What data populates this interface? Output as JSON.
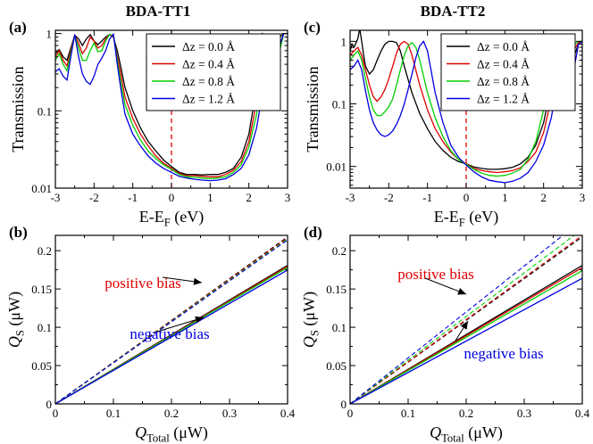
{
  "figure": {
    "titles": [
      "BDA-TT1",
      "BDA-TT2"
    ]
  },
  "styles": {
    "colors": [
      "#000000",
      "#e00000",
      "#00d000",
      "#0000e0"
    ],
    "fermi_color": "#e00000"
  },
  "chart_data": [
    {
      "id": "a",
      "panel_label": "(a)",
      "title": "BDA-TT1",
      "type": "line",
      "yscale": "log",
      "xlim": [
        -3,
        3
      ],
      "ylim": [
        0.01,
        1.1
      ],
      "xticks": [
        -3,
        -2,
        -1,
        0,
        1,
        2,
        3
      ],
      "xticklabels": [
        "-3",
        "-2",
        "-1",
        "0",
        "1",
        "2",
        "3"
      ],
      "yticks": [
        0.01,
        0.1,
        1
      ],
      "yticklabels": [
        "0.01",
        "0.1",
        "1"
      ],
      "ylabel": "Transmission",
      "xlabel_main": "E-E",
      "xlabel_sub": "F",
      "xlabel_tail": " (eV)",
      "vline_x": 0,
      "legend_position": "top-right",
      "series": [
        {
          "name": "Δz = 0.0 Å",
          "x": [
            -3,
            -2.9,
            -2.8,
            -2.7,
            -2.6,
            -2.5,
            -2.4,
            -2.3,
            -2.2,
            -2.1,
            -2,
            -1.9,
            -1.8,
            -1.7,
            -1.6,
            -1.5,
            -1.4,
            -1.3,
            -1.2,
            -1.0,
            -0.8,
            -0.6,
            -0.4,
            -0.2,
            0,
            0.2,
            0.4,
            0.6,
            0.8,
            1.0,
            1.2,
            1.4,
            1.6,
            1.8,
            2.0,
            2.2,
            2.3,
            2.35,
            2.4,
            2.45,
            2.5,
            2.55,
            2.6,
            2.7,
            2.8,
            2.9,
            3.0
          ],
          "y": [
            0.55,
            0.62,
            0.5,
            0.45,
            0.65,
            0.95,
            0.85,
            0.7,
            0.85,
            0.97,
            0.8,
            0.72,
            0.8,
            0.9,
            0.97,
            0.9,
            0.6,
            0.35,
            0.2,
            0.1,
            0.06,
            0.04,
            0.03,
            0.023,
            0.019,
            0.016,
            0.015,
            0.015,
            0.0148,
            0.015,
            0.015,
            0.016,
            0.018,
            0.025,
            0.05,
            0.2,
            0.7,
            1.0,
            0.95,
            0.9,
            0.9,
            0.98,
            0.95,
            0.7,
            0.9,
            1.0,
            1.0
          ]
        },
        {
          "name": "Δz = 0.4 Å",
          "x": [
            -3,
            -2.9,
            -2.8,
            -2.7,
            -2.6,
            -2.5,
            -2.4,
            -2.3,
            -2.2,
            -2.1,
            -2,
            -1.9,
            -1.8,
            -1.7,
            -1.6,
            -1.5,
            -1.4,
            -1.3,
            -1.2,
            -1.0,
            -0.8,
            -0.6,
            -0.4,
            -0.2,
            0,
            0.2,
            0.4,
            0.6,
            0.8,
            1.0,
            1.2,
            1.4,
            1.6,
            1.8,
            2.0,
            2.2,
            2.3,
            2.4,
            2.45,
            2.5,
            2.55,
            2.6,
            2.7,
            2.8,
            2.9,
            3.0
          ],
          "y": [
            0.5,
            0.6,
            0.45,
            0.38,
            0.6,
            0.95,
            0.75,
            0.55,
            0.65,
            0.9,
            0.8,
            0.65,
            0.7,
            0.85,
            0.97,
            0.9,
            0.5,
            0.28,
            0.15,
            0.08,
            0.05,
            0.035,
            0.026,
            0.021,
            0.018,
            0.0155,
            0.0145,
            0.0145,
            0.0142,
            0.014,
            0.014,
            0.015,
            0.017,
            0.022,
            0.04,
            0.13,
            0.4,
            0.95,
            0.9,
            0.85,
            0.7,
            0.5,
            0.35,
            0.7,
            1.0,
            1.0
          ]
        },
        {
          "name": "Δz = 0.8 Å",
          "x": [
            -3,
            -2.9,
            -2.8,
            -2.7,
            -2.6,
            -2.5,
            -2.4,
            -2.3,
            -2.2,
            -2.1,
            -2,
            -1.9,
            -1.8,
            -1.7,
            -1.6,
            -1.5,
            -1.4,
            -1.3,
            -1.2,
            -1.0,
            -0.8,
            -0.6,
            -0.4,
            -0.2,
            0,
            0.2,
            0.4,
            0.6,
            0.8,
            1.0,
            1.2,
            1.4,
            1.6,
            1.8,
            2.0,
            2.2,
            2.3,
            2.4,
            2.5,
            2.55,
            2.6,
            2.7,
            2.8,
            2.9,
            3.0
          ],
          "y": [
            0.45,
            0.55,
            0.4,
            0.33,
            0.55,
            0.95,
            0.65,
            0.45,
            0.45,
            0.6,
            0.75,
            0.58,
            0.6,
            0.8,
            0.97,
            0.95,
            0.45,
            0.22,
            0.12,
            0.065,
            0.042,
            0.03,
            0.024,
            0.02,
            0.0175,
            0.015,
            0.014,
            0.0138,
            0.0135,
            0.0133,
            0.0135,
            0.014,
            0.016,
            0.02,
            0.034,
            0.09,
            0.22,
            0.7,
            0.95,
            0.6,
            0.28,
            0.3,
            0.6,
            1.0,
            1.0
          ]
        },
        {
          "name": "Δz = 1.2 Å",
          "x": [
            -3,
            -2.9,
            -2.8,
            -2.7,
            -2.6,
            -2.5,
            -2.4,
            -2.3,
            -2.2,
            -2.1,
            -2,
            -1.9,
            -1.8,
            -1.7,
            -1.6,
            -1.5,
            -1.4,
            -1.3,
            -1.2,
            -1.0,
            -0.8,
            -0.6,
            -0.4,
            -0.2,
            0,
            0.2,
            0.4,
            0.6,
            0.8,
            1.0,
            1.2,
            1.4,
            1.6,
            1.8,
            2.0,
            2.2,
            2.3,
            2.4,
            2.5,
            2.55,
            2.6,
            2.65,
            2.7,
            2.8,
            2.9,
            3.0
          ],
          "y": [
            0.32,
            0.35,
            0.28,
            0.25,
            0.5,
            0.97,
            0.5,
            0.3,
            0.24,
            0.22,
            0.28,
            0.4,
            0.48,
            0.6,
            0.85,
            0.98,
            0.4,
            0.18,
            0.09,
            0.05,
            0.035,
            0.026,
            0.021,
            0.018,
            0.016,
            0.0142,
            0.0135,
            0.013,
            0.0127,
            0.0125,
            0.0127,
            0.0132,
            0.015,
            0.018,
            0.027,
            0.06,
            0.12,
            0.35,
            0.85,
            0.45,
            0.2,
            0.15,
            0.25,
            0.7,
            1.0,
            1.0
          ]
        }
      ]
    },
    {
      "id": "c",
      "panel_label": "(c)",
      "title": "BDA-TT2",
      "type": "line",
      "yscale": "log",
      "xlim": [
        -3,
        3
      ],
      "ylim": [
        0.0045,
        1.5
      ],
      "xticks": [
        -3,
        -2,
        -1,
        0,
        1,
        2,
        3
      ],
      "xticklabels": [
        "-3",
        "-2",
        "-1",
        "0",
        "1",
        "2",
        "3"
      ],
      "yticks": [
        0.01,
        0.1,
        1
      ],
      "yticklabels": [
        "0.01",
        "0.1",
        "1"
      ],
      "ylabel": "Transmission",
      "xlabel_main": "E-E",
      "xlabel_sub": "F",
      "xlabel_tail": " (eV)",
      "vline_x": 0,
      "legend_position": "top-right",
      "series": [
        {
          "name": "Δz = 0.0 Å",
          "x": [
            -3,
            -2.95,
            -2.9,
            -2.8,
            -2.75,
            -2.7,
            -2.65,
            -2.6,
            -2.5,
            -2.4,
            -2.3,
            -2.2,
            -2.1,
            -2,
            -1.9,
            -1.8,
            -1.7,
            -1.6,
            -1.4,
            -1.2,
            -1.0,
            -0.8,
            -0.6,
            -0.4,
            -0.2,
            0,
            0.2,
            0.4,
            0.6,
            0.8,
            1.0,
            1.2,
            1.4,
            1.6,
            1.8,
            2.0,
            2.2,
            2.3,
            2.4,
            2.45,
            2.5,
            2.6,
            2.7,
            2.8,
            2.9,
            3.0
          ],
          "y": [
            0.7,
            0.9,
            0.8,
            1.1,
            1.6,
            1.0,
            0.6,
            0.4,
            0.3,
            0.35,
            0.5,
            0.7,
            0.9,
            1.0,
            1.0,
            0.95,
            0.7,
            0.4,
            0.15,
            0.07,
            0.04,
            0.025,
            0.018,
            0.014,
            0.012,
            0.011,
            0.0098,
            0.0093,
            0.009,
            0.009,
            0.0092,
            0.0097,
            0.011,
            0.014,
            0.022,
            0.05,
            0.2,
            0.5,
            0.95,
            1.0,
            0.7,
            0.8,
            0.9,
            0.6,
            0.9,
            1.0
          ]
        },
        {
          "name": "Δz = 0.4 Å",
          "x": [
            -3,
            -2.9,
            -2.8,
            -2.7,
            -2.6,
            -2.5,
            -2.4,
            -2.3,
            -2.2,
            -2.1,
            -2,
            -1.9,
            -1.8,
            -1.7,
            -1.6,
            -1.5,
            -1.4,
            -1.2,
            -1.0,
            -0.8,
            -0.6,
            -0.4,
            -0.2,
            0,
            0.2,
            0.4,
            0.6,
            0.8,
            1.0,
            1.2,
            1.4,
            1.6,
            1.8,
            2.0,
            2.2,
            2.3,
            2.4,
            2.5,
            2.55,
            2.6,
            2.7,
            2.8,
            2.9,
            3.0
          ],
          "y": [
            0.6,
            0.7,
            0.8,
            0.6,
            0.35,
            0.2,
            0.13,
            0.11,
            0.13,
            0.17,
            0.25,
            0.4,
            0.65,
            0.9,
            1.0,
            0.9,
            0.6,
            0.2,
            0.08,
            0.04,
            0.025,
            0.017,
            0.013,
            0.011,
            0.0093,
            0.0086,
            0.0082,
            0.008,
            0.0082,
            0.0086,
            0.0095,
            0.012,
            0.017,
            0.035,
            0.12,
            0.3,
            0.75,
            0.95,
            0.8,
            0.6,
            0.8,
            0.75,
            0.95,
            1.0
          ]
        },
        {
          "name": "Δz = 0.8 Å",
          "x": [
            -3,
            -2.9,
            -2.8,
            -2.7,
            -2.6,
            -2.5,
            -2.4,
            -2.3,
            -2.2,
            -2.1,
            -2,
            -1.9,
            -1.8,
            -1.7,
            -1.6,
            -1.5,
            -1.4,
            -1.3,
            -1.2,
            -1.0,
            -0.8,
            -0.6,
            -0.4,
            -0.2,
            0,
            0.2,
            0.4,
            0.6,
            0.8,
            1.0,
            1.2,
            1.4,
            1.6,
            1.8,
            2.0,
            2.2,
            2.3,
            2.4,
            2.5,
            2.6,
            2.65,
            2.7,
            2.8,
            2.9,
            3.0
          ],
          "y": [
            0.5,
            0.6,
            0.7,
            0.5,
            0.25,
            0.13,
            0.08,
            0.065,
            0.065,
            0.075,
            0.09,
            0.12,
            0.2,
            0.35,
            0.6,
            0.85,
            0.95,
            0.8,
            0.5,
            0.15,
            0.06,
            0.03,
            0.018,
            0.013,
            0.0108,
            0.009,
            0.0078,
            0.0072,
            0.007,
            0.0072,
            0.0078,
            0.009,
            0.013,
            0.025,
            0.08,
            0.18,
            0.45,
            0.8,
            0.85,
            0.4,
            0.3,
            0.6,
            0.9,
            1.0,
            1.0
          ]
        },
        {
          "name": "Δz = 1.2 Å",
          "x": [
            -3,
            -2.9,
            -2.8,
            -2.7,
            -2.6,
            -2.5,
            -2.4,
            -2.3,
            -2.2,
            -2.1,
            -2,
            -1.9,
            -1.8,
            -1.7,
            -1.6,
            -1.5,
            -1.4,
            -1.3,
            -1.2,
            -1.1,
            -1.0,
            -0.8,
            -0.6,
            -0.4,
            -0.2,
            0,
            0.2,
            0.4,
            0.6,
            0.8,
            1.0,
            1.2,
            1.4,
            1.6,
            1.8,
            2.0,
            2.2,
            2.4,
            2.5,
            2.6,
            2.65,
            2.7,
            2.8,
            2.9,
            3.0
          ],
          "y": [
            0.35,
            0.4,
            0.5,
            0.35,
            0.16,
            0.08,
            0.05,
            0.038,
            0.032,
            0.03,
            0.032,
            0.037,
            0.047,
            0.065,
            0.1,
            0.17,
            0.3,
            0.55,
            0.85,
            1.0,
            0.7,
            0.15,
            0.05,
            0.022,
            0.014,
            0.0105,
            0.0082,
            0.0068,
            0.006,
            0.0057,
            0.0055,
            0.0058,
            0.0065,
            0.008,
            0.012,
            0.022,
            0.06,
            0.3,
            0.9,
            0.5,
            0.15,
            0.1,
            0.4,
            0.9,
            1.0
          ]
        }
      ]
    },
    {
      "id": "b",
      "panel_label": "(b)",
      "type": "line",
      "xlim": [
        0,
        0.4
      ],
      "ylim": [
        0,
        0.22
      ],
      "xticks": [
        0,
        0.1,
        0.2,
        0.3,
        0.4
      ],
      "xticklabels": [
        "0",
        "0.1",
        "0.2",
        "0.3",
        "0.4"
      ],
      "yticks": [
        0,
        0.05,
        0.1,
        0.15,
        0.2
      ],
      "yticklabels": [
        "0",
        "0.05",
        "0.1",
        "0.15",
        "0.2"
      ],
      "ylabel_main": "Q",
      "ylabel_sub": "S",
      "ylabel_tail": " (μW)",
      "xlabel_main": "Q",
      "xlabel_sub": "Total",
      "xlabel_tail": " (μW)",
      "annotations": [
        {
          "text": "positive bias",
          "color": "#e00000"
        },
        {
          "text": "negative bias",
          "color": "#0000e0"
        }
      ],
      "series_dashed": [
        {
          "name": "Δz = 0.0 Å",
          "slope": 0.545
        },
        {
          "name": "Δz = 0.4 Å",
          "slope": 0.542
        },
        {
          "name": "Δz = 0.8 Å",
          "slope": 0.538
        },
        {
          "name": "Δz = 1.2 Å",
          "slope": 0.535
        }
      ],
      "series_solid": [
        {
          "name": "Δz = 0.0 Å",
          "slope": 0.452
        },
        {
          "name": "Δz = 0.4 Å",
          "slope": 0.449
        },
        {
          "name": "Δz = 0.8 Å",
          "slope": 0.445
        },
        {
          "name": "Δz = 1.2 Å",
          "slope": 0.437
        }
      ]
    },
    {
      "id": "d",
      "panel_label": "(d)",
      "type": "line",
      "xlim": [
        0,
        0.4
      ],
      "ylim": [
        0,
        0.22
      ],
      "xticks": [
        0,
        0.1,
        0.2,
        0.3,
        0.4
      ],
      "xticklabels": [
        "0",
        "0.1",
        "0.2",
        "0.3",
        "0.4"
      ],
      "yticks": [
        0,
        0.05,
        0.1,
        0.15,
        0.2
      ],
      "yticklabels": [
        "0",
        "0.05",
        "0.1",
        "0.15",
        "0.2"
      ],
      "ylabel_main": "Q",
      "ylabel_sub": "S",
      "ylabel_tail": " (μW)",
      "xlabel_main": "Q",
      "xlabel_sub": "Total",
      "xlabel_tail": " (μW)",
      "annotations": [
        {
          "text": "positive bias",
          "color": "#e00000"
        },
        {
          "text": "negative bias",
          "color": "#0000e0"
        }
      ],
      "series_dashed": [
        {
          "name": "Δz = 0.0 Å",
          "slope": 0.545
        },
        {
          "name": "Δz = 0.4 Å",
          "slope": 0.55
        },
        {
          "name": "Δz = 0.8 Å",
          "slope": 0.57
        },
        {
          "name": "Δz = 1.2 Å",
          "slope": 0.6
        }
      ],
      "series_solid": [
        {
          "name": "Δz = 0.0 Å",
          "slope": 0.452
        },
        {
          "name": "Δz = 0.4 Å",
          "slope": 0.445
        },
        {
          "name": "Δz = 0.8 Å",
          "slope": 0.435
        },
        {
          "name": "Δz = 1.2 Å",
          "slope": 0.41
        }
      ]
    }
  ]
}
